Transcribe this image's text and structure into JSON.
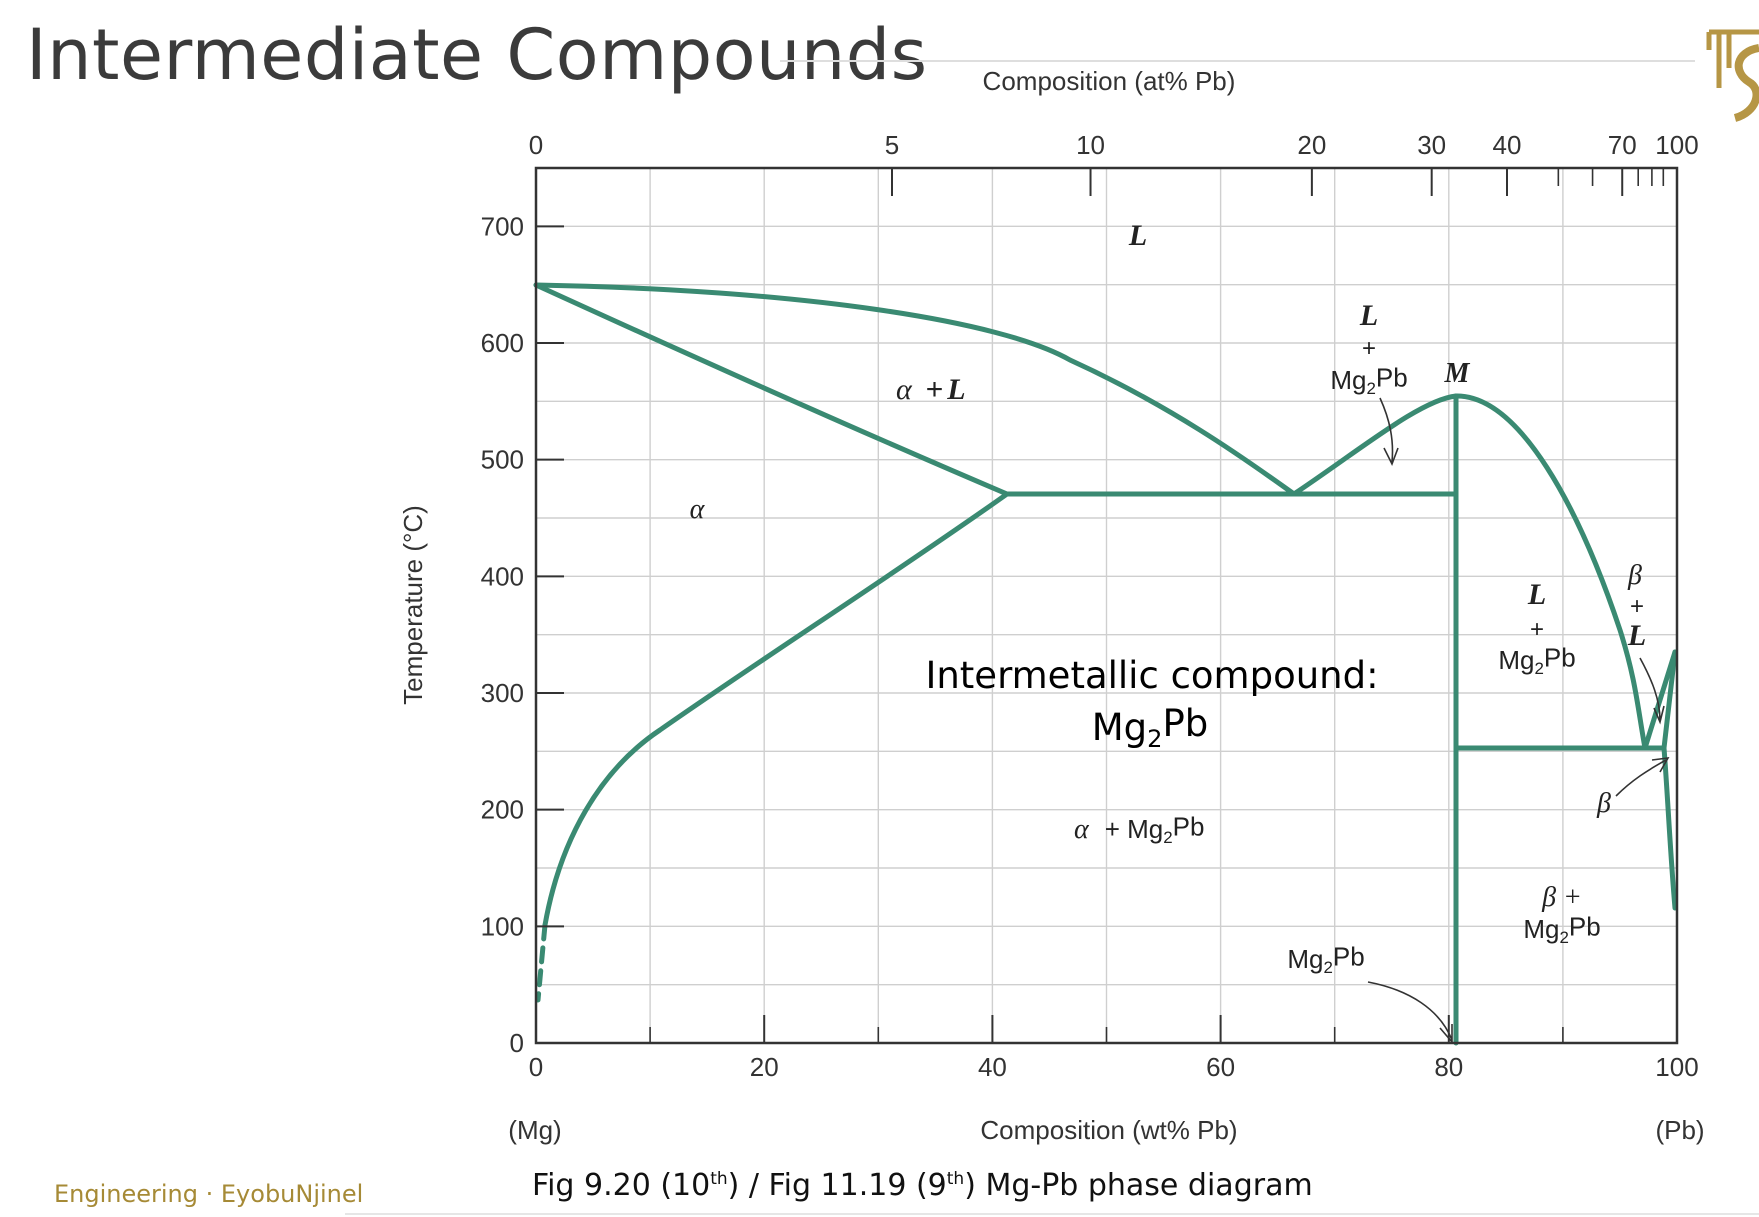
{
  "slide": {
    "title": "Intermediate Compounds",
    "footer": "Engineering · EyobuNjinel",
    "caption": {
      "part1": "Fig 9.20 (10",
      "sup1": "th",
      "part2": ") / Fig 11.19 (9",
      "sup2": "th",
      "part3": ") Mg-Pb phase diagram"
    }
  },
  "colors": {
    "curve": "#3a8a72",
    "grid": "#cfcfcf",
    "frame": "#333333",
    "footer": "#a68a36"
  },
  "diagram": {
    "top_axis_label": "Composition (at% Pb)",
    "top_ticks": [
      {
        "label": "0",
        "wt": 0
      },
      {
        "label": "5",
        "wt": 31.2
      },
      {
        "label": "10",
        "wt": 48.6
      },
      {
        "label": "20",
        "wt": 68.0
      },
      {
        "label": "30",
        "wt": 78.5
      },
      {
        "label": "40",
        "wt": 85.1
      },
      {
        "label": "70",
        "wt": 95.2
      },
      {
        "label": "100",
        "wt": 100
      }
    ],
    "top_minor_ticks_wt": [
      89.6,
      92.6,
      96.6,
      97.8,
      98.8
    ],
    "y_label": "Temperature (°C)",
    "y_ticks": [
      "0",
      "100",
      "200",
      "300",
      "400",
      "500",
      "600",
      "700"
    ],
    "x_label": "Composition (wt% Pb)",
    "x_ticks": [
      "0",
      "20",
      "40",
      "60",
      "80",
      "100"
    ],
    "x_left_end": "(Mg)",
    "x_right_end": "(Pb)",
    "x_range": [
      0,
      100
    ],
    "y_range": [
      0,
      750
    ],
    "grid": true,
    "phase_labels": {
      "liquid": "L",
      "alpha_plus_l": {
        "a": "α",
        "b": "+",
        "c": "L"
      },
      "alpha": "α",
      "l_plus_mg2pb_upper": {
        "l": "L",
        "plus": "+",
        "compound": "Mg2Pb"
      },
      "m_point": "M",
      "l_plus_mg2pb_right": {
        "l": "L",
        "plus": "+",
        "compound": "Mg2Pb"
      },
      "beta_plus_l": {
        "b": "β",
        "plus": "+",
        "l": "L"
      },
      "alpha_plus_mg2pb": {
        "a": "α",
        "rest": "+ Mg2Pb"
      },
      "beta": "β",
      "beta_plus_mg2pb": {
        "b": "β +",
        "compound": "Mg2Pb"
      },
      "mg2pb_line": "Mg2Pb"
    },
    "annotation": {
      "line1": "Intermetallic compound:",
      "line2": "Mg2Pb"
    }
  }
}
